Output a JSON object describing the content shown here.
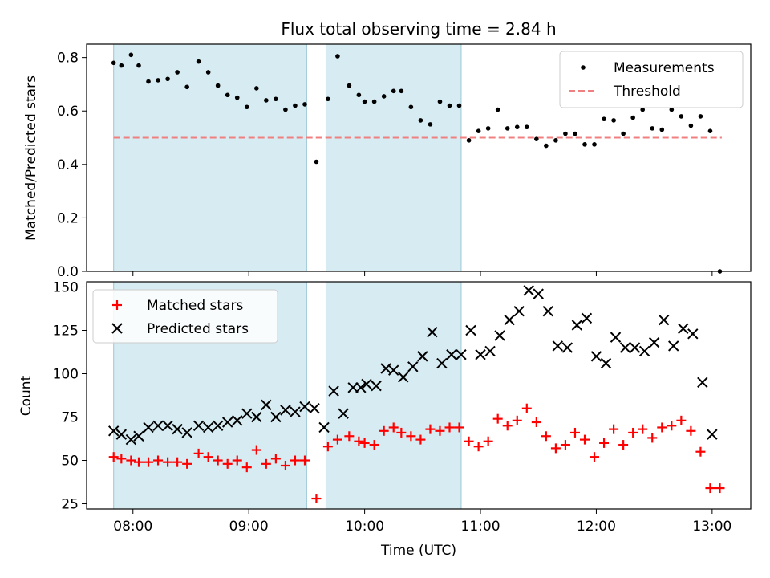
{
  "chart_data": [
    {
      "type": "scatter",
      "title": "Flux total observing time = 2.84 h",
      "xlabel": "",
      "ylabel": "Matched/Predicted stars",
      "ylim": [
        0,
        0.85
      ],
      "yticks": [
        "0.0",
        "0.2",
        "0.4",
        "0.6",
        "0.8"
      ],
      "ytick_values": [
        0,
        0.2,
        0.4,
        0.6,
        0.8
      ],
      "legend_position": "top-right",
      "shaded_intervals": [
        [
          "07:50",
          "09:30"
        ],
        [
          "09:40",
          "10:50"
        ]
      ],
      "threshold": 0.5,
      "threshold_range": [
        "07:50",
        "13:05"
      ],
      "series": [
        {
          "name": "Measurements",
          "marker": "dot",
          "color": "#000000",
          "points": [
            [
              "07:50",
              0.78
            ],
            [
              "07:54",
              0.77
            ],
            [
              "07:59",
              0.81
            ],
            [
              "08:03",
              0.77
            ],
            [
              "08:08",
              0.71
            ],
            [
              "08:13",
              0.715
            ],
            [
              "08:18",
              0.72
            ],
            [
              "08:23",
              0.745
            ],
            [
              "08:28",
              0.69
            ],
            [
              "08:34",
              0.785
            ],
            [
              "08:39",
              0.745
            ],
            [
              "08:44",
              0.695
            ],
            [
              "08:49",
              0.66
            ],
            [
              "08:54",
              0.65
            ],
            [
              "08:59",
              0.615
            ],
            [
              "09:04",
              0.685
            ],
            [
              "09:09",
              0.64
            ],
            [
              "09:14",
              0.645
            ],
            [
              "09:19",
              0.605
            ],
            [
              "09:24",
              0.62
            ],
            [
              "09:29",
              0.625
            ],
            [
              "09:35",
              0.41
            ],
            [
              "09:41",
              0.645
            ],
            [
              "09:46",
              0.805
            ],
            [
              "09:52",
              0.695
            ],
            [
              "09:57",
              0.66
            ],
            [
              "10:00",
              0.635
            ],
            [
              "10:05",
              0.635
            ],
            [
              "10:10",
              0.655
            ],
            [
              "10:15",
              0.675
            ],
            [
              "10:19",
              0.675
            ],
            [
              "10:24",
              0.615
            ],
            [
              "10:29",
              0.565
            ],
            [
              "10:34",
              0.55
            ],
            [
              "10:39",
              0.635
            ],
            [
              "10:44",
              0.62
            ],
            [
              "10:49",
              0.62
            ],
            [
              "10:54",
              0.49
            ],
            [
              "10:59",
              0.525
            ],
            [
              "11:04",
              0.535
            ],
            [
              "11:09",
              0.605
            ],
            [
              "11:14",
              0.535
            ],
            [
              "11:19",
              0.54
            ],
            [
              "11:24",
              0.54
            ],
            [
              "11:29",
              0.495
            ],
            [
              "11:34",
              0.47
            ],
            [
              "11:39",
              0.49
            ],
            [
              "11:44",
              0.515
            ],
            [
              "11:49",
              0.515
            ],
            [
              "11:54",
              0.475
            ],
            [
              "11:59",
              0.475
            ],
            [
              "12:04",
              0.57
            ],
            [
              "12:09",
              0.565
            ],
            [
              "12:14",
              0.515
            ],
            [
              "12:19",
              0.575
            ],
            [
              "12:24",
              0.605
            ],
            [
              "12:29",
              0.535
            ],
            [
              "12:34",
              0.53
            ],
            [
              "12:39",
              0.605
            ],
            [
              "12:44",
              0.58
            ],
            [
              "12:49",
              0.545
            ],
            [
              "12:54",
              0.58
            ],
            [
              "12:59",
              0.525
            ],
            [
              "13:04",
              0.0
            ]
          ]
        },
        {
          "name": "Threshold",
          "marker": "dashed-line",
          "color": "#f08080"
        }
      ]
    },
    {
      "type": "scatter",
      "title": "",
      "xlabel": "Time (UTC)",
      "ylabel": "Count",
      "ylim": [
        22,
        153
      ],
      "yticks": [
        "25",
        "50",
        "75",
        "100",
        "125",
        "150"
      ],
      "ytick_values": [
        25,
        50,
        75,
        100,
        125,
        150
      ],
      "xticks": [
        "08:00",
        "09:00",
        "10:00",
        "11:00",
        "12:00",
        "13:00"
      ],
      "legend_position": "top-left",
      "shaded_intervals": [
        [
          "07:50",
          "09:30"
        ],
        [
          "09:40",
          "10:50"
        ]
      ],
      "series": [
        {
          "name": "Matched stars",
          "marker": "plus",
          "color": "#ff0000",
          "points": [
            [
              "07:50",
              52
            ],
            [
              "07:54",
              51
            ],
            [
              "07:59",
              50
            ],
            [
              "08:03",
              49
            ],
            [
              "08:08",
              49
            ],
            [
              "08:13",
              50
            ],
            [
              "08:18",
              49
            ],
            [
              "08:23",
              49
            ],
            [
              "08:28",
              48
            ],
            [
              "08:34",
              54
            ],
            [
              "08:39",
              52
            ],
            [
              "08:44",
              50
            ],
            [
              "08:49",
              48
            ],
            [
              "08:54",
              50
            ],
            [
              "08:59",
              46
            ],
            [
              "09:04",
              56
            ],
            [
              "09:09",
              48
            ],
            [
              "09:14",
              51
            ],
            [
              "09:19",
              47
            ],
            [
              "09:24",
              50
            ],
            [
              "09:29",
              50
            ],
            [
              "09:35",
              28
            ],
            [
              "09:41",
              58
            ],
            [
              "09:46",
              62
            ],
            [
              "09:52",
              64
            ],
            [
              "09:57",
              61
            ],
            [
              "10:00",
              60
            ],
            [
              "10:05",
              59
            ],
            [
              "10:10",
              67
            ],
            [
              "10:15",
              69
            ],
            [
              "10:19",
              66
            ],
            [
              "10:24",
              64
            ],
            [
              "10:29",
              62
            ],
            [
              "10:34",
              68
            ],
            [
              "10:39",
              67
            ],
            [
              "10:44",
              69
            ],
            [
              "10:49",
              69
            ],
            [
              "10:54",
              61
            ],
            [
              "10:59",
              58
            ],
            [
              "11:04",
              61
            ],
            [
              "11:09",
              74
            ],
            [
              "11:14",
              70
            ],
            [
              "11:19",
              73
            ],
            [
              "11:24",
              80
            ],
            [
              "11:29",
              72
            ],
            [
              "11:34",
              64
            ],
            [
              "11:39",
              57
            ],
            [
              "11:44",
              59
            ],
            [
              "11:49",
              66
            ],
            [
              "11:54",
              62
            ],
            [
              "11:59",
              52
            ],
            [
              "12:04",
              60
            ],
            [
              "12:09",
              68
            ],
            [
              "12:14",
              59
            ],
            [
              "12:19",
              66
            ],
            [
              "12:24",
              68
            ],
            [
              "12:29",
              63
            ],
            [
              "12:34",
              69
            ],
            [
              "12:39",
              70
            ],
            [
              "12:44",
              73
            ],
            [
              "12:49",
              67
            ],
            [
              "12:54",
              55
            ],
            [
              "12:59",
              34
            ],
            [
              "13:04",
              34
            ]
          ]
        },
        {
          "name": "Predicted stars",
          "marker": "x",
          "color": "#000000",
          "points": [
            [
              "07:50",
              67
            ],
            [
              "07:54",
              65
            ],
            [
              "07:59",
              62
            ],
            [
              "08:03",
              64
            ],
            [
              "08:08",
              69
            ],
            [
              "08:13",
              70
            ],
            [
              "08:18",
              70
            ],
            [
              "08:23",
              68
            ],
            [
              "08:28",
              66
            ],
            [
              "08:34",
              70
            ],
            [
              "08:39",
              69
            ],
            [
              "08:44",
              70
            ],
            [
              "08:49",
              72
            ],
            [
              "08:54",
              73
            ],
            [
              "08:59",
              77
            ],
            [
              "09:04",
              75
            ],
            [
              "09:09",
              82
            ],
            [
              "09:14",
              75
            ],
            [
              "09:19",
              79
            ],
            [
              "09:24",
              78
            ],
            [
              "09:29",
              81
            ],
            [
              "09:34",
              80
            ],
            [
              "09:39",
              69
            ],
            [
              "09:44",
              90
            ],
            [
              "09:49",
              77
            ],
            [
              "09:54",
              92
            ],
            [
              "09:58",
              92
            ],
            [
              "10:01",
              94
            ],
            [
              "10:06",
              93
            ],
            [
              "10:11",
              103
            ],
            [
              "10:15",
              102
            ],
            [
              "10:20",
              98
            ],
            [
              "10:25",
              104
            ],
            [
              "10:30",
              110
            ],
            [
              "10:35",
              124
            ],
            [
              "10:40",
              106
            ],
            [
              "10:45",
              111
            ],
            [
              "10:50",
              111
            ],
            [
              "10:55",
              125
            ],
            [
              "11:00",
              111
            ],
            [
              "11:05",
              113
            ],
            [
              "11:10",
              122
            ],
            [
              "11:15",
              131
            ],
            [
              "11:20",
              136
            ],
            [
              "11:25",
              148
            ],
            [
              "11:30",
              146
            ],
            [
              "11:35",
              136
            ],
            [
              "11:40",
              116
            ],
            [
              "11:45",
              115
            ],
            [
              "11:50",
              128
            ],
            [
              "11:55",
              132
            ],
            [
              "12:00",
              110
            ],
            [
              "12:05",
              106
            ],
            [
              "12:10",
              121
            ],
            [
              "12:15",
              115
            ],
            [
              "12:20",
              115
            ],
            [
              "12:25",
              113
            ],
            [
              "12:30",
              118
            ],
            [
              "12:35",
              131
            ],
            [
              "12:40",
              116
            ],
            [
              "12:45",
              126
            ],
            [
              "12:50",
              123
            ],
            [
              "12:55",
              95
            ],
            [
              "13:00",
              65
            ]
          ]
        }
      ]
    }
  ]
}
